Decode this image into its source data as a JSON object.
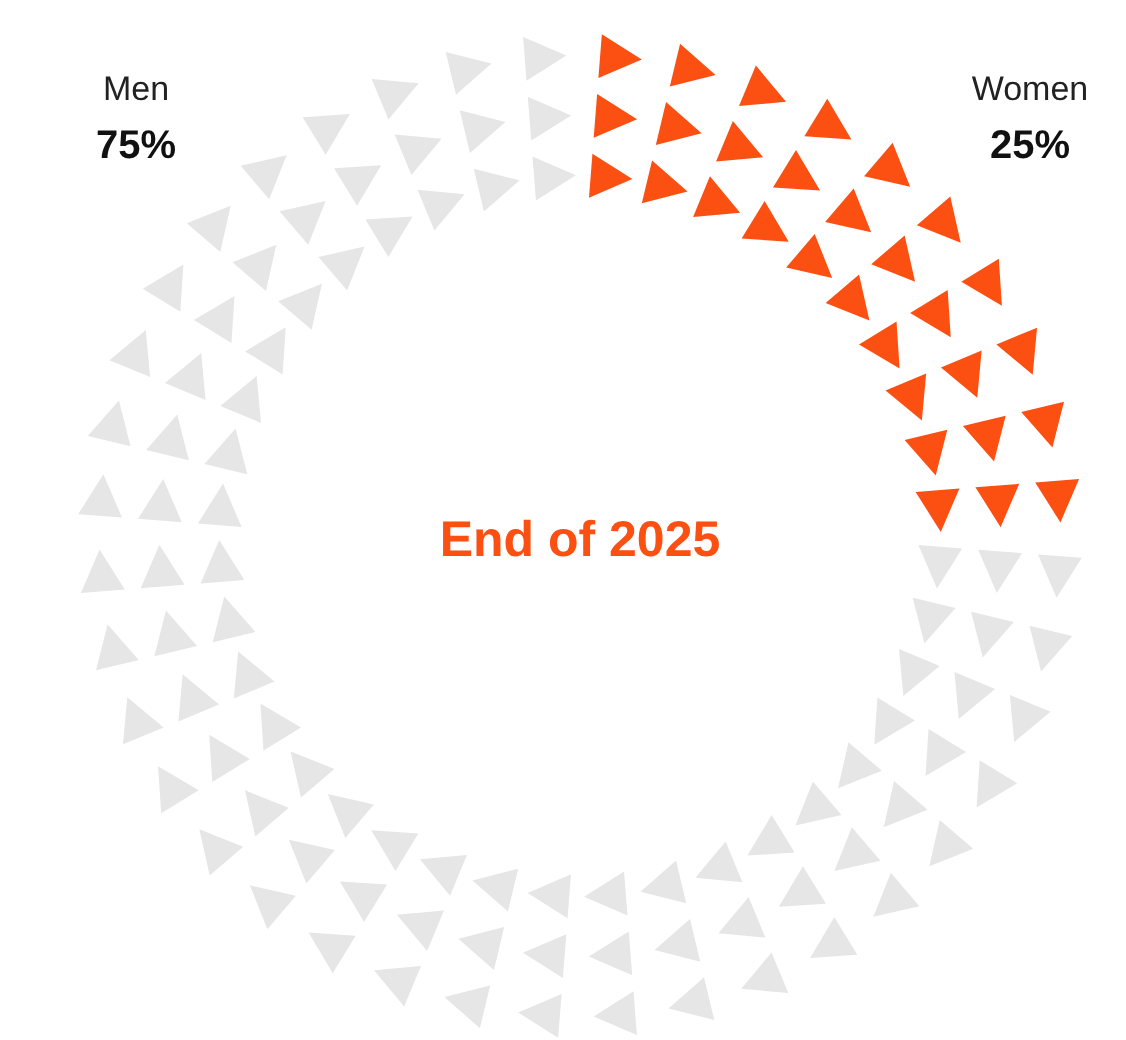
{
  "chart_data": {
    "type": "donut",
    "title": "End of 2025",
    "categories": [
      "Men",
      "Women"
    ],
    "values": [
      75,
      25
    ],
    "colors": [
      "#e6e6e6",
      "#fc5012"
    ],
    "value_labels": [
      "75%",
      "25%"
    ]
  }
}
